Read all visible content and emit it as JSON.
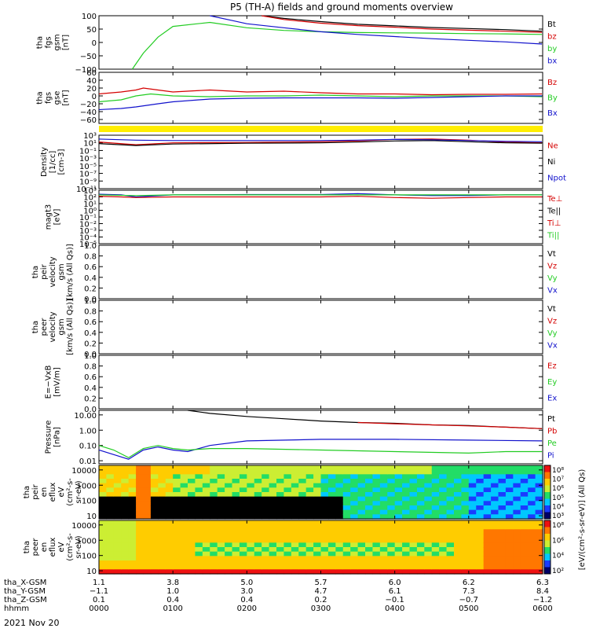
{
  "title": "P5 (TH-A) fields and ground moments overview",
  "date": "2021 Nov 20",
  "colors": {
    "black": "#000000",
    "red": "#d40000",
    "green": "#22cc22",
    "blue": "#1111cc",
    "yellow": "#ffee00"
  },
  "chart_data": [
    {
      "type": "line",
      "name": "fgs-gsm",
      "ylabel": [
        "tha",
        "fgs",
        "gsm",
        "[nT]"
      ],
      "ylim": [
        -100,
        100
      ],
      "yticks": [
        "100",
        "50",
        "0",
        "−50",
        "−100"
      ],
      "ytick_values": [
        100,
        50,
        0,
        -50,
        -100
      ],
      "legend": [
        {
          "label": "Bt",
          "color": "#000000"
        },
        {
          "label": "bz",
          "color": "#d40000"
        },
        {
          "label": "by",
          "color": "#22cc22"
        },
        {
          "label": "bx",
          "color": "#1111cc"
        }
      ],
      "series": [
        {
          "color": "#000000",
          "x": [
            2.2,
            2.5,
            3,
            3.5,
            4,
            4.5,
            5,
            5.5,
            5.99
          ],
          "y": [
            100,
            90,
            78,
            68,
            62,
            56,
            52,
            48,
            42
          ]
        },
        {
          "color": "#d40000",
          "x": [
            2.2,
            2.5,
            3,
            3.5,
            4,
            4.5,
            5,
            5.5,
            5.99
          ],
          "y": [
            100,
            86,
            72,
            63,
            57,
            50,
            46,
            42,
            38
          ]
        },
        {
          "color": "#22cc22",
          "x": [
            0.45,
            0.6,
            0.8,
            1.0,
            1.5,
            2,
            2.5,
            3,
            3.5,
            4,
            4.5,
            5,
            5.5,
            5.99
          ],
          "y": [
            -100,
            -40,
            20,
            60,
            75,
            55,
            45,
            40,
            37,
            36,
            35,
            33,
            32,
            30
          ]
        },
        {
          "color": "#1111cc",
          "x": [
            1.5,
            1.8,
            2,
            2.5,
            3,
            3.5,
            4,
            4.5,
            5,
            5.5,
            5.99
          ],
          "y": [
            100,
            82,
            70,
            55,
            40,
            30,
            22,
            14,
            8,
            2,
            -6
          ]
        }
      ]
    },
    {
      "type": "line",
      "name": "fgs-gse",
      "ylabel": [
        "tha",
        "fgs",
        "gse",
        "[nT]"
      ],
      "ylim": [
        -70,
        60
      ],
      "yticks": [
        "60",
        "40",
        "20",
        "0",
        "−20",
        "−40",
        "−60"
      ],
      "ytick_values": [
        60,
        40,
        20,
        0,
        -20,
        -40,
        -60
      ],
      "legend": [
        {
          "label": "Bz",
          "color": "#d40000"
        },
        {
          "label": "By",
          "color": "#22cc22"
        },
        {
          "label": "Bx",
          "color": "#1111cc"
        }
      ],
      "series": [
        {
          "color": "#d40000",
          "x": [
            0,
            0.3,
            0.5,
            0.6,
            1,
            1.5,
            2,
            2.5,
            3,
            3.5,
            4,
            4.5,
            5,
            5.5,
            5.99
          ],
          "y": [
            5,
            10,
            15,
            20,
            10,
            15,
            10,
            12,
            8,
            5,
            5,
            3,
            4,
            4,
            5
          ]
        },
        {
          "color": "#22cc22",
          "x": [
            0,
            0.3,
            0.5,
            0.7,
            1,
            1.5,
            2,
            2.5,
            3,
            3.5,
            4,
            4.5,
            5,
            5.5,
            5.99
          ],
          "y": [
            -15,
            -10,
            0,
            5,
            0,
            -2,
            0,
            0,
            2,
            0,
            -2,
            0,
            0,
            0,
            -2
          ]
        },
        {
          "color": "#1111cc",
          "x": [
            0,
            0.3,
            0.5,
            0.8,
            1,
            1.5,
            2,
            2.5,
            3,
            3.5,
            4,
            4.5,
            5,
            5.5,
            5.99
          ],
          "y": [
            -35,
            -32,
            -28,
            -20,
            -15,
            -8,
            -6,
            -5,
            -5,
            -5,
            -6,
            -4,
            -2,
            0,
            0
          ]
        }
      ]
    },
    {
      "type": "line",
      "name": "density",
      "log": true,
      "ylabel": [
        "Density",
        "[1/cc]",
        "[cm-3]"
      ],
      "ylim": [
        -11,
        3
      ],
      "yticks": [
        "10³",
        "10¹",
        "10⁻¹",
        "10⁻³",
        "10⁻⁵",
        "10⁻⁷",
        "10⁻⁹",
        "10⁻¹¹"
      ],
      "ytick_values": [
        3,
        1,
        -1,
        -3,
        -5,
        -7,
        -9,
        -11
      ],
      "legend": [
        {
          "label": "Ne",
          "color": "#d40000"
        },
        {
          "label": "Ni",
          "color": "#000000"
        },
        {
          "label": "Npot",
          "color": "#1111cc"
        }
      ],
      "series": [
        {
          "color": "#d40000",
          "x": [
            0,
            0.5,
            1,
            2,
            3,
            3.5,
            4,
            4.5,
            5,
            5.5,
            5.99
          ],
          "y": [
            1.2,
            0.5,
            1.0,
            1.1,
            1.3,
            1.5,
            1.9,
            2.0,
            1.7,
            1.2,
            1.0
          ]
        },
        {
          "color": "#000000",
          "x": [
            0,
            0.5,
            1,
            2,
            3,
            3.5,
            4,
            4.5,
            5,
            5.5,
            5.99
          ],
          "y": [
            0.8,
            0.3,
            0.7,
            0.9,
            1.0,
            1.2,
            1.5,
            1.6,
            1.3,
            1.0,
            0.9
          ]
        },
        {
          "color": "#1111cc",
          "x": [
            0,
            0.5,
            1,
            2,
            3,
            3.5,
            4,
            4.5,
            5,
            5.5,
            5.99
          ],
          "y": [
            2.0,
            1.7,
            1.6,
            1.6,
            1.6,
            1.7,
            1.9,
            1.8,
            1.6,
            1.4,
            1.3
          ]
        }
      ]
    },
    {
      "type": "line",
      "name": "magt3",
      "log": true,
      "ylabel": [
        "magt3",
        "[eV]"
      ],
      "ylim": [
        -5,
        3
      ],
      "yticks": [
        "10³",
        "10²",
        "10¹",
        "10⁰",
        "10⁻¹",
        "10⁻²",
        "10⁻³",
        "10⁻⁴",
        "10⁻⁵"
      ],
      "ytick_values": [
        3,
        2,
        1,
        0,
        -1,
        -2,
        -3,
        -4,
        -5
      ],
      "legend": [
        {
          "label": "Te⊥",
          "color": "#d40000"
        },
        {
          "label": "Te||",
          "color": "#000000"
        },
        {
          "label": "Ti⊥",
          "color": "#d40000"
        },
        {
          "label": "Ti||",
          "color": "#22cc22"
        }
      ],
      "series": [
        {
          "color": "#1111cc",
          "x": [
            0,
            0.3,
            0.5,
            1,
            2,
            3,
            3.5,
            4,
            4.5,
            5,
            5.5,
            5.99
          ],
          "y": [
            2.4,
            2.3,
            2.0,
            2.3,
            2.35,
            2.35,
            2.5,
            2.3,
            2.2,
            2.2,
            2.3,
            2.3
          ]
        },
        {
          "color": "#d40000",
          "x": [
            0,
            0.3,
            0.5,
            1,
            2,
            3,
            3.5,
            4,
            4.5,
            5,
            5.5,
            5.99
          ],
          "y": [
            2.1,
            2.0,
            1.9,
            2.0,
            2.0,
            2.0,
            2.1,
            1.9,
            1.8,
            1.9,
            2.0,
            2.0
          ]
        },
        {
          "color": "#22cc22",
          "x": [
            0,
            0.5,
            1,
            2,
            3,
            4,
            5,
            5.99
          ],
          "y": [
            2.3,
            2.2,
            2.3,
            2.3,
            2.3,
            2.3,
            2.3,
            2.3
          ]
        }
      ]
    },
    {
      "type": "line",
      "name": "peir-velocity",
      "ylabel": [
        "tha",
        "peir",
        "velocity",
        "gsm",
        "[km/s (All Qs)]"
      ],
      "ylim": [
        0,
        1
      ],
      "yticks": [
        "1.0",
        "0.8",
        "0.6",
        "0.4",
        "0.2",
        "0.0"
      ],
      "ytick_values": [
        1,
        0.8,
        0.6,
        0.4,
        0.2,
        0
      ],
      "legend": [
        {
          "label": "Vt",
          "color": "#000000"
        },
        {
          "label": "Vz",
          "color": "#d40000"
        },
        {
          "label": "Vy",
          "color": "#22cc22"
        },
        {
          "label": "Vx",
          "color": "#1111cc"
        }
      ],
      "series": []
    },
    {
      "type": "line",
      "name": "peer-velocity",
      "ylabel": [
        "tha",
        "peer",
        "velocity",
        "gsm",
        "[km/s (All Qs)]"
      ],
      "ylim": [
        0,
        1
      ],
      "yticks": [
        "1.0",
        "0.8",
        "0.6",
        "0.4",
        "0.2",
        "0.0"
      ],
      "ytick_values": [
        1,
        0.8,
        0.6,
        0.4,
        0.2,
        0
      ],
      "legend": [
        {
          "label": "Vt",
          "color": "#000000"
        },
        {
          "label": "Vz",
          "color": "#d40000"
        },
        {
          "label": "Vy",
          "color": "#22cc22"
        },
        {
          "label": "Vx",
          "color": "#1111cc"
        }
      ],
      "series": []
    },
    {
      "type": "line",
      "name": "e-field",
      "ylabel": [
        "E=−VxB",
        "[mV/m]"
      ],
      "ylim": [
        0,
        1
      ],
      "yticks": [
        "1.0",
        "0.8",
        "0.6",
        "0.4",
        "0.2",
        "0.0"
      ],
      "ytick_values": [
        1,
        0.8,
        0.6,
        0.4,
        0.2,
        0
      ],
      "legend": [
        {
          "label": "Ez",
          "color": "#d40000"
        },
        {
          "label": "Ey",
          "color": "#22cc22"
        },
        {
          "label": "Ex",
          "color": "#1111cc"
        }
      ],
      "series": []
    },
    {
      "type": "line",
      "name": "pressure",
      "log": true,
      "ylabel": [
        "Pressure",
        "[nPa]"
      ],
      "ylim": [
        -2.2,
        1.3
      ],
      "yticks": [
        "10.00",
        "1.00",
        "0.10",
        "0.01"
      ],
      "ytick_values": [
        1,
        0,
        -1,
        -2
      ],
      "legend": [
        {
          "label": "Pt",
          "color": "#000000"
        },
        {
          "label": "Pb",
          "color": "#d40000"
        },
        {
          "label": "Pe",
          "color": "#22cc22"
        },
        {
          "label": "Pi",
          "color": "#1111cc"
        }
      ],
      "series": [
        {
          "color": "#000000",
          "x": [
            1.2,
            1.5,
            2,
            2.5,
            3,
            3.5,
            4,
            4.5,
            5,
            5.5,
            5.99
          ],
          "y": [
            1.3,
            1.1,
            0.9,
            0.75,
            0.6,
            0.5,
            0.45,
            0.35,
            0.3,
            0.2,
            0.1
          ]
        },
        {
          "color": "#d40000",
          "x": [
            3.5,
            4,
            4.5,
            5,
            5.5,
            5.99
          ],
          "y": [
            0.5,
            0.42,
            0.35,
            0.28,
            0.2,
            0.1
          ]
        },
        {
          "color": "#1111cc",
          "x": [
            0,
            0.2,
            0.4,
            0.6,
            0.8,
            1.0,
            1.2,
            1.5,
            2,
            3,
            4,
            5,
            5.99
          ],
          "y": [
            -1.3,
            -1.6,
            -1.9,
            -1.3,
            -1.1,
            -1.3,
            -1.4,
            -1.0,
            -0.7,
            -0.6,
            -0.6,
            -0.65,
            -0.7
          ]
        },
        {
          "color": "#22cc22",
          "x": [
            0,
            0.2,
            0.4,
            0.6,
            0.8,
            1.0,
            1.2,
            1.5,
            2,
            3,
            4,
            5,
            5.5,
            5.99
          ],
          "y": [
            -1.0,
            -1.3,
            -1.8,
            -1.2,
            -1.0,
            -1.2,
            -1.3,
            -1.2,
            -1.2,
            -1.3,
            -1.4,
            -1.5,
            -1.4,
            -1.4
          ]
        }
      ]
    },
    {
      "type": "heatmap",
      "name": "peir-en-eflux",
      "ylabel": [
        "tha",
        "peir",
        "en",
        "eflux",
        "eV",
        "(cm²-s-",
        "sr-eV)"
      ],
      "yticks": [
        "10000",
        "1000",
        "100",
        "10"
      ],
      "ytick_values": [
        4,
        3,
        2,
        1
      ],
      "ylim": [
        0.8,
        4.3
      ]
    },
    {
      "type": "heatmap",
      "name": "peer-en-eflux",
      "ylabel": [
        "tha",
        "peer",
        "en",
        "eflux",
        "eV",
        "(cm²-s-",
        "sr-eV)"
      ],
      "yticks": [
        "10000",
        "1000",
        "100",
        "10"
      ],
      "ytick_values": [
        4,
        3,
        2,
        1
      ],
      "ylim": [
        0.8,
        4.3
      ]
    }
  ],
  "colorbar": {
    "label": "[eV/(cm²-s-sr-eV)] (All Qs)",
    "upper_ticks": [
      "10⁸",
      "10⁷",
      "10⁶",
      "10⁵",
      "10⁴",
      "10³"
    ],
    "lower_ticks": [
      "10⁸",
      "10⁶",
      "10⁴",
      "10²"
    ]
  },
  "xaxis": {
    "ticks": [
      0,
      1,
      2,
      3,
      4,
      5,
      6
    ],
    "row_labels": [
      "tha_X-GSM",
      "tha_Y-GSM",
      "tha_Z-GSM",
      "hhmm"
    ],
    "rows": [
      [
        "1.1",
        "3.8",
        "5.0",
        "5.7",
        "6.0",
        "6.2",
        "6.3"
      ],
      [
        "−1.1",
        "1.0",
        "3.0",
        "4.7",
        "6.1",
        "7.3",
        "8.4"
      ],
      [
        "0.1",
        "0.4",
        "0.4",
        "0.2",
        "−0.1",
        "−0.7",
        "−1.2"
      ],
      [
        "0000",
        "0100",
        "0200",
        "0300",
        "0400",
        "0500",
        "0600"
      ]
    ]
  }
}
